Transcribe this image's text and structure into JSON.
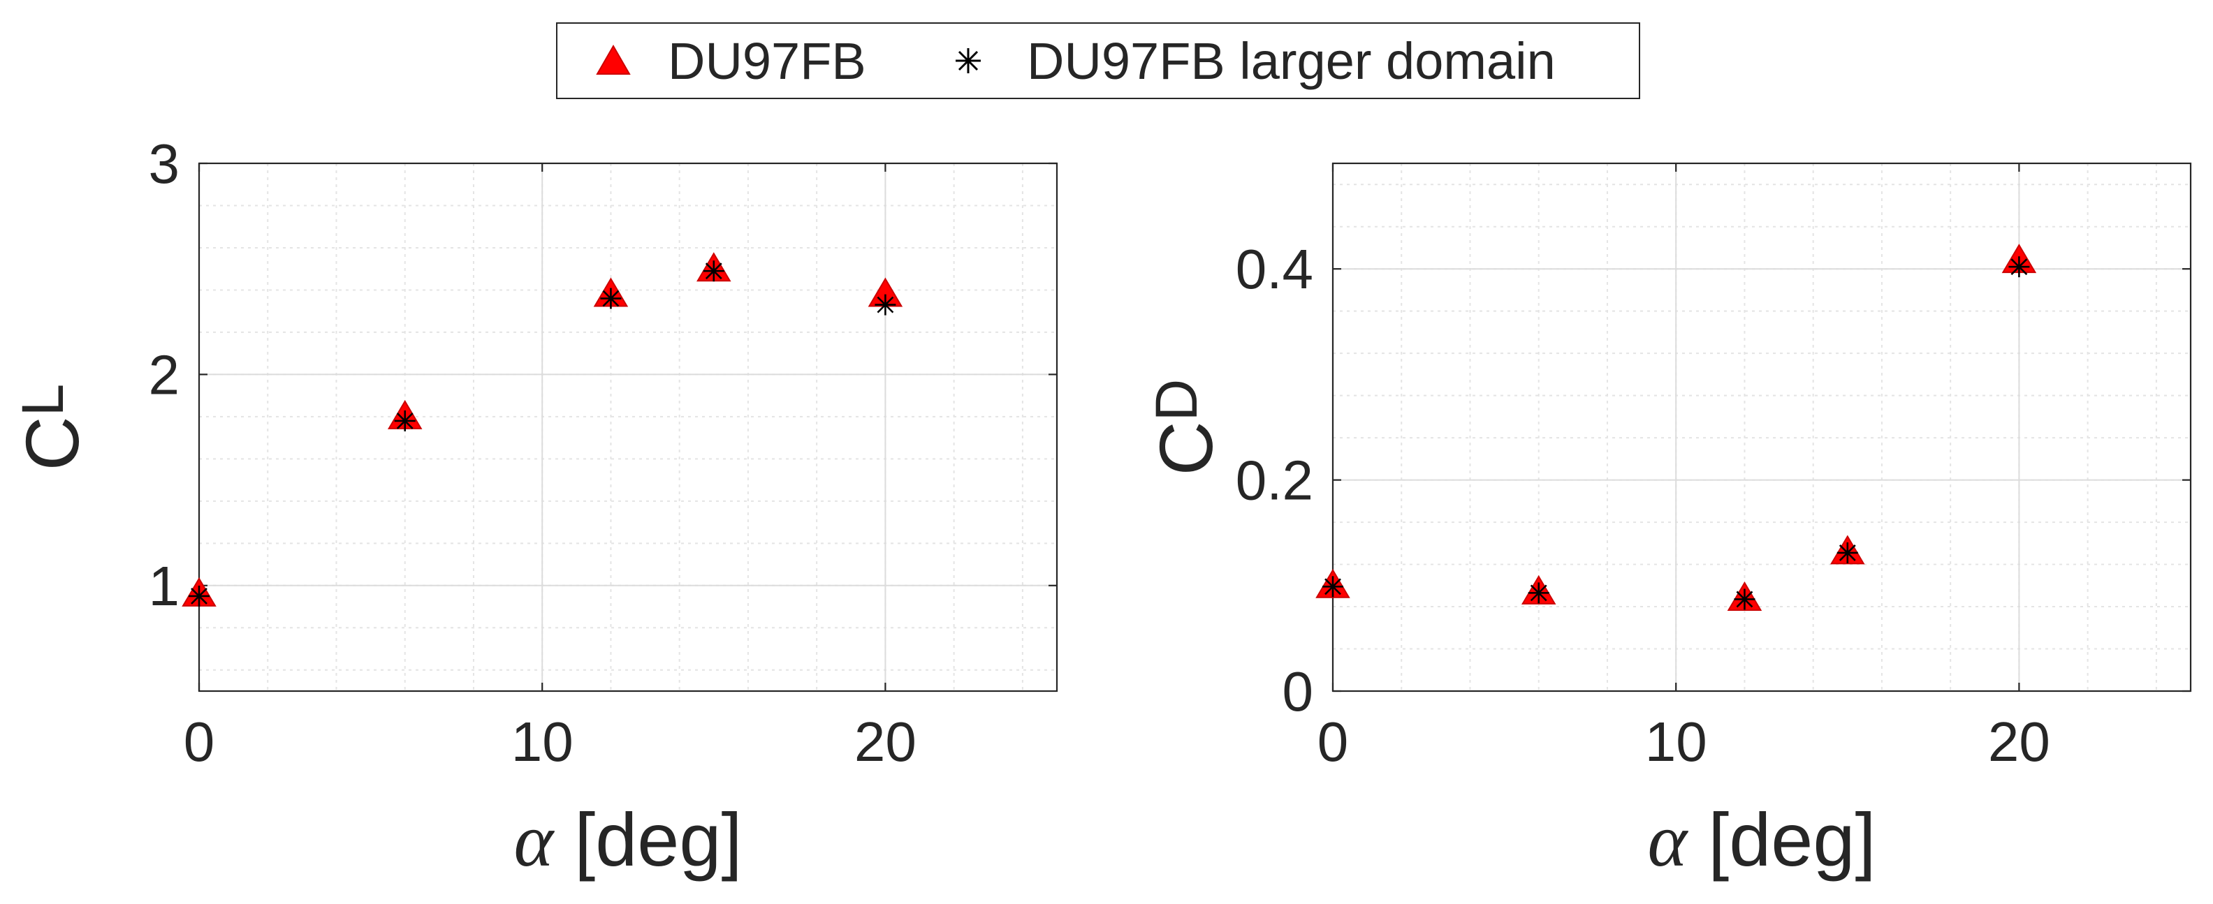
{
  "legend": [
    {
      "label": "DU97FB",
      "marker": "triangle",
      "color": "#ff0000"
    },
    {
      "label": "DU97FB larger domain",
      "marker": "asterisk",
      "color": "#000000"
    }
  ],
  "chart_data": [
    {
      "type": "scatter",
      "xlabel_symbol": "α",
      "xlabel_unit": "[deg]",
      "ylabel_main": "C",
      "ylabel_sub": "L",
      "xlim": [
        0,
        25
      ],
      "ylim": [
        0.5,
        3
      ],
      "xticks": [
        0,
        10,
        20
      ],
      "yticks": [
        1,
        2,
        3
      ],
      "grid": true,
      "series": [
        {
          "name": "DU97FB",
          "marker": "triangle",
          "color": "#ff0000",
          "x": [
            0,
            6,
            12,
            15,
            20
          ],
          "y": [
            0.96,
            1.8,
            2.38,
            2.5,
            2.38
          ]
        },
        {
          "name": "DU97FB larger domain",
          "marker": "asterisk",
          "color": "#000000",
          "x": [
            0,
            6,
            12,
            15,
            20
          ],
          "y": [
            0.95,
            1.78,
            2.36,
            2.49,
            2.33
          ]
        }
      ]
    },
    {
      "type": "scatter",
      "xlabel_symbol": "α",
      "xlabel_unit": "[deg]",
      "ylabel_main": "C",
      "ylabel_sub": "D",
      "xlim": [
        0,
        25
      ],
      "ylim": [
        0,
        0.5
      ],
      "xticks": [
        0,
        10,
        20
      ],
      "yticks": [
        0,
        0.2,
        0.4
      ],
      "grid": true,
      "series": [
        {
          "name": "DU97FB",
          "marker": "triangle",
          "color": "#ff0000",
          "x": [
            0,
            6,
            12,
            15,
            20
          ],
          "y": [
            0.1,
            0.094,
            0.088,
            0.132,
            0.408
          ]
        },
        {
          "name": "DU97FB larger domain",
          "marker": "asterisk",
          "color": "#000000",
          "x": [
            0,
            6,
            12,
            15,
            20
          ],
          "y": [
            0.099,
            0.093,
            0.087,
            0.131,
            0.402
          ]
        }
      ]
    }
  ]
}
